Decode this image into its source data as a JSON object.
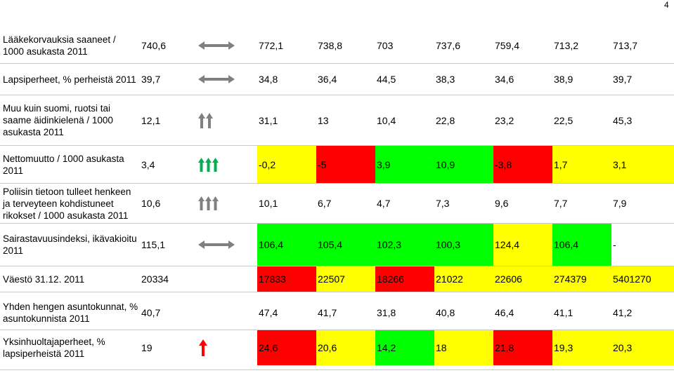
{
  "page_number": "4",
  "colors": {
    "green": "#00ff00",
    "yellow": "#ffff00",
    "red": "#ff0000",
    "arrow_gray": "#808080",
    "arrow_green": "#00b050",
    "arrow_red": "#ff0000"
  },
  "rows": [
    {
      "label": "Lääkekorvauksia saaneet / 1000 asukasta 2011",
      "base": "740,6",
      "trend_icon": "horizontal-double-arrow-icon",
      "values": [
        "772,1",
        "738,8",
        "703",
        "737,6",
        "759,4",
        "713,2",
        "713,7"
      ],
      "colors": [
        "",
        "",
        "",
        "",
        "",
        "",
        ""
      ]
    },
    {
      "label": "Lapsiperheet, % perheistä 2011",
      "base": "39,7",
      "trend_icon": "horizontal-double-arrow-icon",
      "values": [
        "34,8",
        "36,4",
        "44,5",
        "38,3",
        "34,6",
        "38,9",
        "39,7"
      ],
      "colors": [
        "",
        "",
        "",
        "",
        "",
        "",
        ""
      ]
    },
    {
      "label": "Muu kuin suomi, ruotsi tai saame äidinkielenä / 1000 asukasta 2011",
      "base": "12,1",
      "trend_icon": "two-gray-up-arrows-icon",
      "values": [
        "31,1",
        "13",
        "10,4",
        "22,8",
        "23,2",
        "22,5",
        "45,3"
      ],
      "colors": [
        "",
        "",
        "",
        "",
        "",
        "",
        ""
      ]
    },
    {
      "label": "Nettomuutto / 1000 asukasta 2011",
      "base": "3,4",
      "trend_icon": "three-green-up-arrows-icon",
      "values": [
        "-0,2",
        "-5",
        "3,9",
        "10,9",
        "-3,8",
        "1,7",
        "3,1"
      ],
      "colors": [
        "yellow",
        "red",
        "green",
        "green",
        "red",
        "yellow",
        "yellow"
      ]
    },
    {
      "label": "Poliisin tietoon tulleet henkeen ja terveyteen kohdistuneet rikokset / 1000 asukasta 2011",
      "base": "10,6",
      "trend_icon": "three-gray-up-arrows-icon",
      "values": [
        "10,1",
        "6,7",
        "4,7",
        "7,3",
        "9,6",
        "7,7",
        "7,9"
      ],
      "colors": [
        "",
        "",
        "",
        "",
        "",
        "",
        ""
      ]
    },
    {
      "label": "Sairastavuusindeksi, ikävakioitu 2011",
      "base": "115,1",
      "trend_icon": "horizontal-double-arrow-icon",
      "values": [
        "106,4",
        "105,4",
        "102,3",
        "100,3",
        "124,4",
        "106,4",
        "-"
      ],
      "colors": [
        "green",
        "green",
        "green",
        "green",
        "yellow",
        "green",
        ""
      ]
    },
    {
      "label": "Väestö 31.12. 2011",
      "base": "20334",
      "trend_icon": "",
      "values": [
        "17833",
        "22507",
        "18266",
        "21022",
        "22606",
        "274379",
        "5401270"
      ],
      "colors": [
        "red",
        "yellow",
        "red",
        "yellow",
        "yellow",
        "yellow",
        "yellow"
      ]
    },
    {
      "label": "Yhden hengen asuntokunnat, % asuntokunnista 2011",
      "base": "40,7",
      "trend_icon": "",
      "values": [
        "47,4",
        "41,7",
        "31,8",
        "40,8",
        "46,4",
        "41,1",
        "41,2"
      ],
      "colors": [
        "",
        "",
        "",
        "",
        "",
        "",
        ""
      ]
    },
    {
      "label": "Yksinhuoltajaperheet, % lapsiperheistä 2011",
      "base": "19",
      "trend_icon": "red-up-arrow-icon",
      "values": [
        "24,6",
        "20,6",
        "14,2",
        "18",
        "21,8",
        "19,3",
        "20,3"
      ],
      "colors": [
        "red",
        "yellow",
        "green",
        "yellow",
        "red",
        "yellow",
        "yellow"
      ]
    }
  ]
}
